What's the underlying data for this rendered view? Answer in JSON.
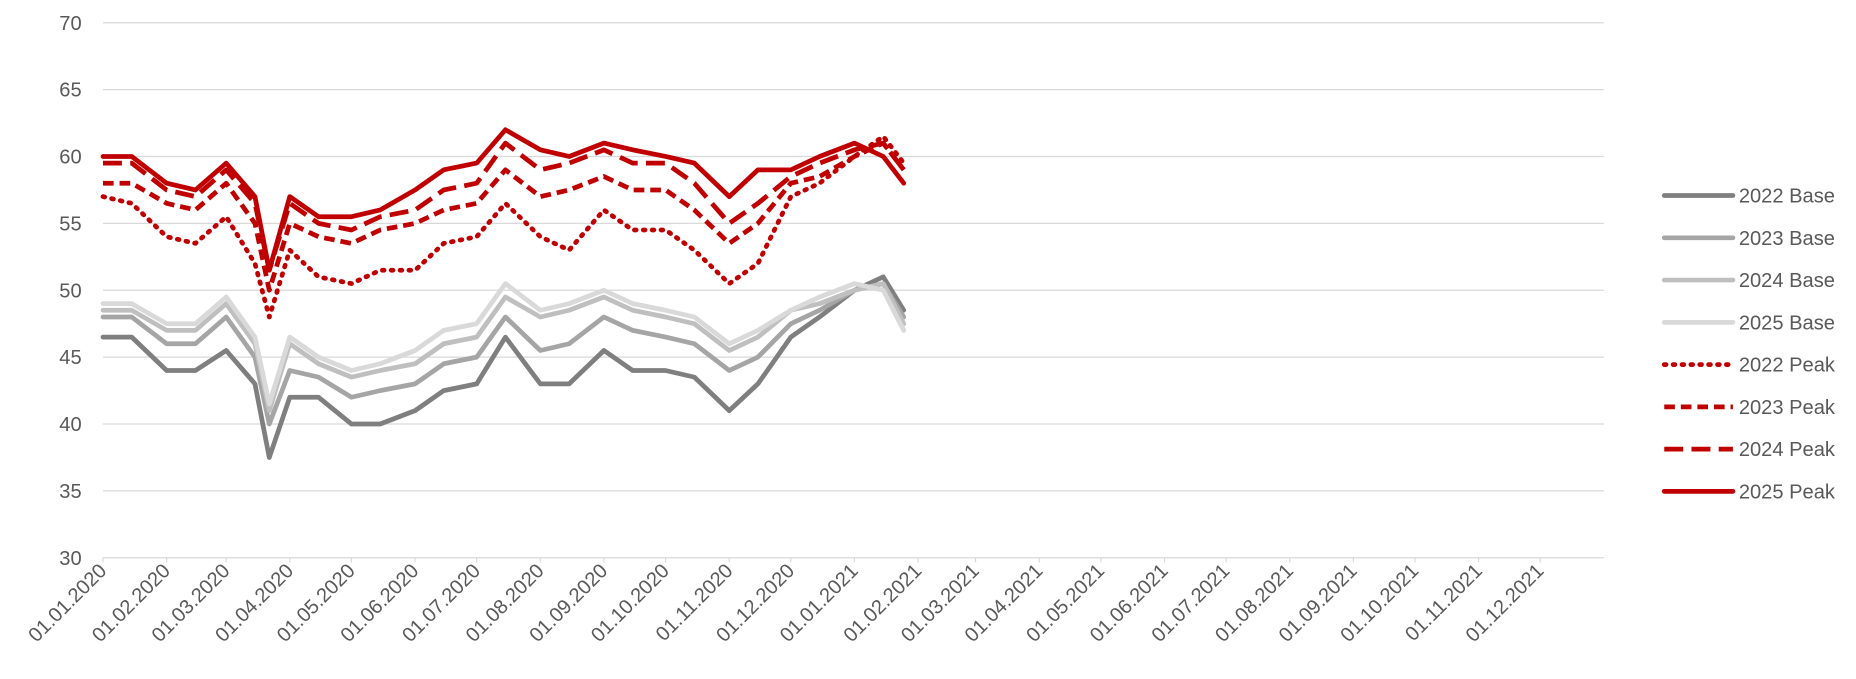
{
  "chart_data": {
    "type": "line",
    "x": [
      "01.01.2020",
      "15.01.2020",
      "01.02.2020",
      "15.02.2020",
      "01.03.2020",
      "15.03.2020",
      "22.03.2020",
      "01.04.2020",
      "15.04.2020",
      "01.05.2020",
      "15.05.2020",
      "01.06.2020",
      "15.06.2020",
      "01.07.2020",
      "15.07.2020",
      "01.08.2020",
      "15.08.2020",
      "01.09.2020",
      "15.09.2020",
      "01.10.2020",
      "15.10.2020",
      "01.11.2020",
      "15.11.2020",
      "01.12.2020",
      "15.12.2020",
      "01.01.2021",
      "15.01.2021",
      "25.01.2021"
    ],
    "series": [
      {
        "name": "2022 Base",
        "color": "#7f7f7f",
        "dash": "solid",
        "values": [
          46.5,
          46.5,
          44,
          44,
          45.5,
          43,
          37.5,
          42,
          42,
          40,
          40,
          41,
          42.5,
          43,
          46.5,
          43,
          43,
          45.5,
          44,
          44,
          43.5,
          41,
          43,
          46.5,
          48,
          50,
          51,
          48.5
        ]
      },
      {
        "name": "2023 Base",
        "color": "#a5a5a5",
        "dash": "solid",
        "values": [
          48,
          48,
          46,
          46,
          48,
          45,
          40,
          44,
          43.5,
          42,
          42.5,
          43,
          44.5,
          45,
          48,
          45.5,
          46,
          48,
          47,
          46.5,
          46,
          44,
          45,
          47.5,
          48.5,
          50,
          50.5,
          48
        ]
      },
      {
        "name": "2024 Base",
        "color": "#bfbfbf",
        "dash": "solid",
        "values": [
          48.5,
          48.5,
          47,
          47,
          49,
          46,
          41,
          46,
          44.5,
          43.5,
          44,
          44.5,
          46,
          46.5,
          49.5,
          48,
          48.5,
          49.5,
          48.5,
          48,
          47.5,
          45.5,
          46.5,
          48.5,
          49,
          50,
          50.5,
          47.5
        ]
      },
      {
        "name": "2025 Base",
        "color": "#d9d9d9",
        "dash": "solid",
        "values": [
          49,
          49,
          47.5,
          47.5,
          49.5,
          46.5,
          41.5,
          46.5,
          45,
          44,
          44.5,
          45.5,
          47,
          47.5,
          50.5,
          48.5,
          49,
          50,
          49,
          48.5,
          48,
          46,
          47,
          48.5,
          49.5,
          50.5,
          50,
          47
        ]
      },
      {
        "name": "2022 Peak",
        "color": "#c00000",
        "dash": "dot",
        "values": [
          57,
          56.5,
          54,
          53.5,
          55.5,
          52,
          48,
          53,
          51,
          50.5,
          51.5,
          51.5,
          53.5,
          54,
          56.5,
          54,
          53,
          56,
          54.5,
          54.5,
          53,
          50.5,
          52,
          57,
          58,
          60,
          61.5,
          59.5
        ]
      },
      {
        "name": "2023 Peak",
        "color": "#c00000",
        "dash": "dash",
        "values": [
          58,
          58,
          56.5,
          56,
          58,
          55,
          50,
          55,
          54,
          53.5,
          54.5,
          55,
          56,
          56.5,
          59,
          57,
          57.5,
          58.5,
          57.5,
          57.5,
          56,
          53.5,
          55,
          58,
          58.5,
          60,
          61,
          59
        ]
      },
      {
        "name": "2024 Peak",
        "color": "#c00000",
        "dash": "longdash",
        "values": [
          59.5,
          59.5,
          57.5,
          57,
          59,
          56.5,
          51.5,
          56.5,
          55,
          54.5,
          55.5,
          56,
          57.5,
          58,
          61,
          59,
          59.5,
          60.5,
          59.5,
          59.5,
          58,
          55,
          56.5,
          58.5,
          59.5,
          60.5,
          61,
          59
        ]
      },
      {
        "name": "2025 Peak",
        "color": "#c00000",
        "dash": "solid",
        "values": [
          60,
          60,
          58,
          57.5,
          59.5,
          57,
          51.5,
          57,
          55.5,
          55.5,
          56,
          57.5,
          59,
          59.5,
          62,
          60.5,
          60,
          61,
          60.5,
          60,
          59.5,
          57,
          59,
          59,
          60,
          61,
          60,
          58
        ]
      }
    ],
    "xlim": [
      "01.01.2020",
      "01.01.2022"
    ],
    "xticks": [
      "01.01.2020",
      "01.02.2020",
      "01.03.2020",
      "01.04.2020",
      "01.05.2020",
      "01.06.2020",
      "01.07.2020",
      "01.08.2020",
      "01.09.2020",
      "01.10.2020",
      "01.11.2020",
      "01.12.2020",
      "01.01.2021",
      "01.02.2021",
      "01.03.2021",
      "01.04.2021",
      "01.05.2021",
      "01.06.2021",
      "01.07.2021",
      "01.08.2021",
      "01.09.2021",
      "01.10.2021",
      "01.11.2021",
      "01.12.2021"
    ],
    "ylim": [
      30,
      70
    ],
    "yticks": [
      30,
      35,
      40,
      45,
      50,
      55,
      60,
      65,
      70
    ],
    "grid": true,
    "legend": "right"
  }
}
